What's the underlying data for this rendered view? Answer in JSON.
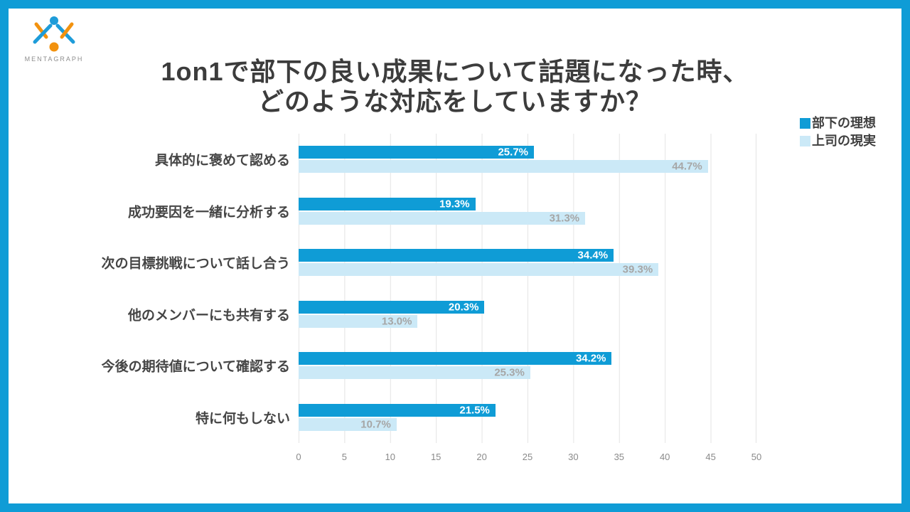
{
  "frame_color": "#0f9cd6",
  "logo": {
    "text": "MENTAGRAPH",
    "blue": "#1e9cd9",
    "orange": "#f2920f"
  },
  "title": {
    "line1": "1on1で部下の良い成果について話題になった時、",
    "line2": "どのような対応をしていますか？"
  },
  "legend": [
    {
      "label": "部下の理想",
      "color": "#0f9cd6"
    },
    {
      "label": "上司の現実",
      "color": "#cbe9f7"
    }
  ],
  "chart_data": {
    "type": "bar",
    "orientation": "horizontal",
    "title": "1on1で部下の良い成果について話題になった時、どのような対応をしていますか？",
    "categories": [
      "具体的に褒めて認める",
      "成功要因を一緒に分析する",
      "次の目標挑戦について話し合う",
      "他のメンバーにも共有する",
      "今後の期待値について確認する",
      "特に何もしない"
    ],
    "series": [
      {
        "name": "部下の理想",
        "color": "#0f9cd6",
        "label_color": "#ffffff",
        "values": [
          25.7,
          19.3,
          34.4,
          20.3,
          34.2,
          21.5
        ],
        "labels": [
          "25.7%",
          "19.3%",
          "34.4%",
          "20.3%",
          "34.2%",
          "21.5%"
        ]
      },
      {
        "name": "上司の現実",
        "color": "#cbe9f7",
        "label_color": "#a6a6a6",
        "values": [
          44.7,
          31.3,
          39.3,
          13.0,
          25.3,
          10.7
        ],
        "labels": [
          "44.7%",
          "31.3%",
          "39.3%",
          "13.0%",
          "25.3%",
          "10.7%"
        ]
      }
    ],
    "value_suffix": "%",
    "xlim": [
      0,
      50
    ],
    "x_ticks": [
      0,
      5,
      10,
      15,
      20,
      25,
      30,
      35,
      40,
      45,
      50
    ],
    "grid": true,
    "legend_position": "top-right"
  }
}
